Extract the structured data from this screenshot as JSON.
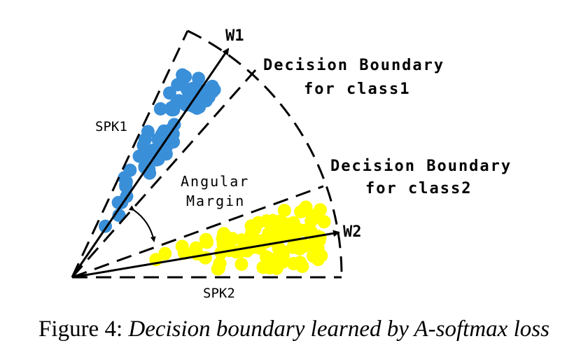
{
  "labels": {
    "w1": "W1",
    "w2": "W2",
    "decision_boundary_class1": [
      "Decision Boundary",
      "for class1"
    ],
    "decision_boundary_class2": [
      "Decision Boundary",
      "for class2"
    ],
    "spk1": "SPK1",
    "spk2": "SPK2",
    "angular_margin": [
      "Angular",
      "Margin"
    ]
  },
  "caption": {
    "prefix": "Figure 4:",
    "text": "Decision boundary learned by A-softmax loss"
  },
  "colors": {
    "class1": "#3a8fd9",
    "class2": "#ffff00",
    "lines": "#000000"
  }
}
